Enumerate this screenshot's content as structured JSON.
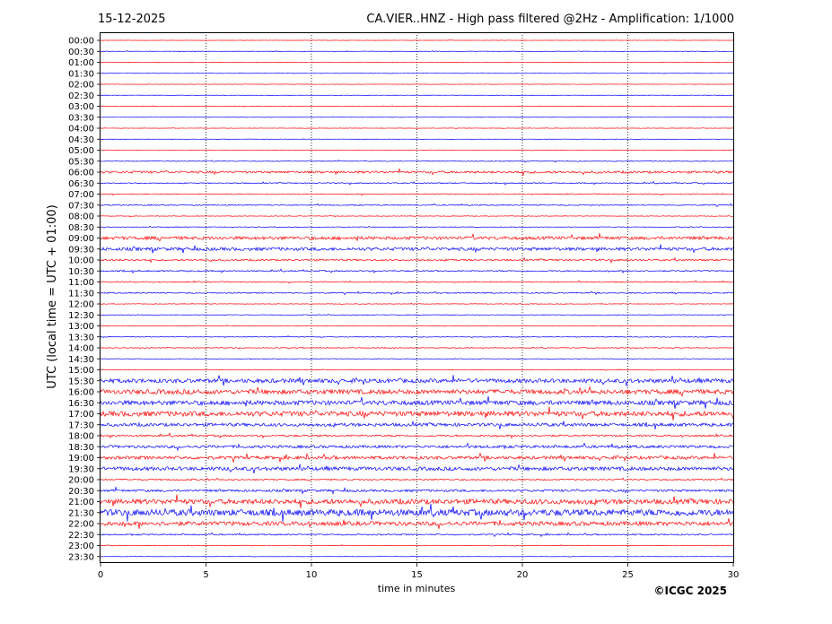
{
  "header": {
    "date": "15-12-2025",
    "title": "CA.VIER..HNZ - High pass filtered @2Hz - Amplification: 1/1000"
  },
  "footer": {
    "copyright": "©ICGC 2025"
  },
  "chart_data": {
    "type": "line",
    "title": "CA.VIER..HNZ - High pass filtered @2Hz - Amplification: 1/1000",
    "xlabel": "time in minutes",
    "ylabel": "UTC (local time = UTC + 01:00)",
    "xlim": [
      0,
      30
    ],
    "xticks": [
      0,
      5,
      10,
      15,
      20,
      25,
      30
    ],
    "vertical_gridlines": [
      5,
      10,
      15,
      20,
      25
    ],
    "grid": "vertical dotted",
    "colors": {
      "red": "#ff0000",
      "blue": "#0000ff"
    },
    "rows": [
      {
        "label": "00:00",
        "color": "red",
        "activity": 0.03
      },
      {
        "label": "00:30",
        "color": "blue",
        "activity": 0.05
      },
      {
        "label": "01:00",
        "color": "red",
        "activity": 0.04
      },
      {
        "label": "01:30",
        "color": "blue",
        "activity": 0.03
      },
      {
        "label": "02:00",
        "color": "red",
        "activity": 0.04
      },
      {
        "label": "02:30",
        "color": "blue",
        "activity": 0.03
      },
      {
        "label": "03:00",
        "color": "red",
        "activity": 0.06
      },
      {
        "label": "03:30",
        "color": "blue",
        "activity": 0.03
      },
      {
        "label": "04:00",
        "color": "red",
        "activity": 0.04
      },
      {
        "label": "04:30",
        "color": "blue",
        "activity": 0.03
      },
      {
        "label": "05:00",
        "color": "red",
        "activity": 0.06
      },
      {
        "label": "05:30",
        "color": "blue",
        "activity": 0.08
      },
      {
        "label": "06:00",
        "color": "red",
        "activity": 0.25
      },
      {
        "label": "06:30",
        "color": "blue",
        "activity": 0.12
      },
      {
        "label": "07:00",
        "color": "red",
        "activity": 0.1
      },
      {
        "label": "07:30",
        "color": "blue",
        "activity": 0.12
      },
      {
        "label": "08:00",
        "color": "red",
        "activity": 0.06
      },
      {
        "label": "08:30",
        "color": "blue",
        "activity": 0.07
      },
      {
        "label": "09:00",
        "color": "red",
        "activity": 0.35
      },
      {
        "label": "09:30",
        "color": "blue",
        "activity": 0.35
      },
      {
        "label": "10:00",
        "color": "red",
        "activity": 0.2
      },
      {
        "label": "10:30",
        "color": "blue",
        "activity": 0.15
      },
      {
        "label": "11:00",
        "color": "red",
        "activity": 0.12
      },
      {
        "label": "11:30",
        "color": "blue",
        "activity": 0.12
      },
      {
        "label": "12:00",
        "color": "red",
        "activity": 0.06
      },
      {
        "label": "12:30",
        "color": "blue",
        "activity": 0.07
      },
      {
        "label": "13:00",
        "color": "red",
        "activity": 0.06
      },
      {
        "label": "13:30",
        "color": "blue",
        "activity": 0.08
      },
      {
        "label": "14:00",
        "color": "red",
        "activity": 0.08
      },
      {
        "label": "14:30",
        "color": "blue",
        "activity": 0.06
      },
      {
        "label": "15:00",
        "color": "red",
        "activity": 0.06
      },
      {
        "label": "15:30",
        "color": "blue",
        "activity": 0.45
      },
      {
        "label": "16:00",
        "color": "red",
        "activity": 0.5
      },
      {
        "label": "16:30",
        "color": "blue",
        "activity": 0.5
      },
      {
        "label": "17:00",
        "color": "red",
        "activity": 0.55
      },
      {
        "label": "17:30",
        "color": "blue",
        "activity": 0.35
      },
      {
        "label": "18:00",
        "color": "red",
        "activity": 0.2
      },
      {
        "label": "18:30",
        "color": "blue",
        "activity": 0.3
      },
      {
        "label": "19:00",
        "color": "red",
        "activity": 0.35
      },
      {
        "label": "19:30",
        "color": "blue",
        "activity": 0.4
      },
      {
        "label": "20:00",
        "color": "red",
        "activity": 0.15
      },
      {
        "label": "20:30",
        "color": "blue",
        "activity": 0.25
      },
      {
        "label": "21:00",
        "color": "red",
        "activity": 0.55
      },
      {
        "label": "21:30",
        "color": "blue",
        "activity": 0.7
      },
      {
        "label": "22:00",
        "color": "red",
        "activity": 0.45
      },
      {
        "label": "22:30",
        "color": "blue",
        "activity": 0.15
      },
      {
        "label": "23:00",
        "color": "red",
        "activity": 0.06
      },
      {
        "label": "23:30",
        "color": "blue",
        "activity": 0.04
      }
    ]
  }
}
